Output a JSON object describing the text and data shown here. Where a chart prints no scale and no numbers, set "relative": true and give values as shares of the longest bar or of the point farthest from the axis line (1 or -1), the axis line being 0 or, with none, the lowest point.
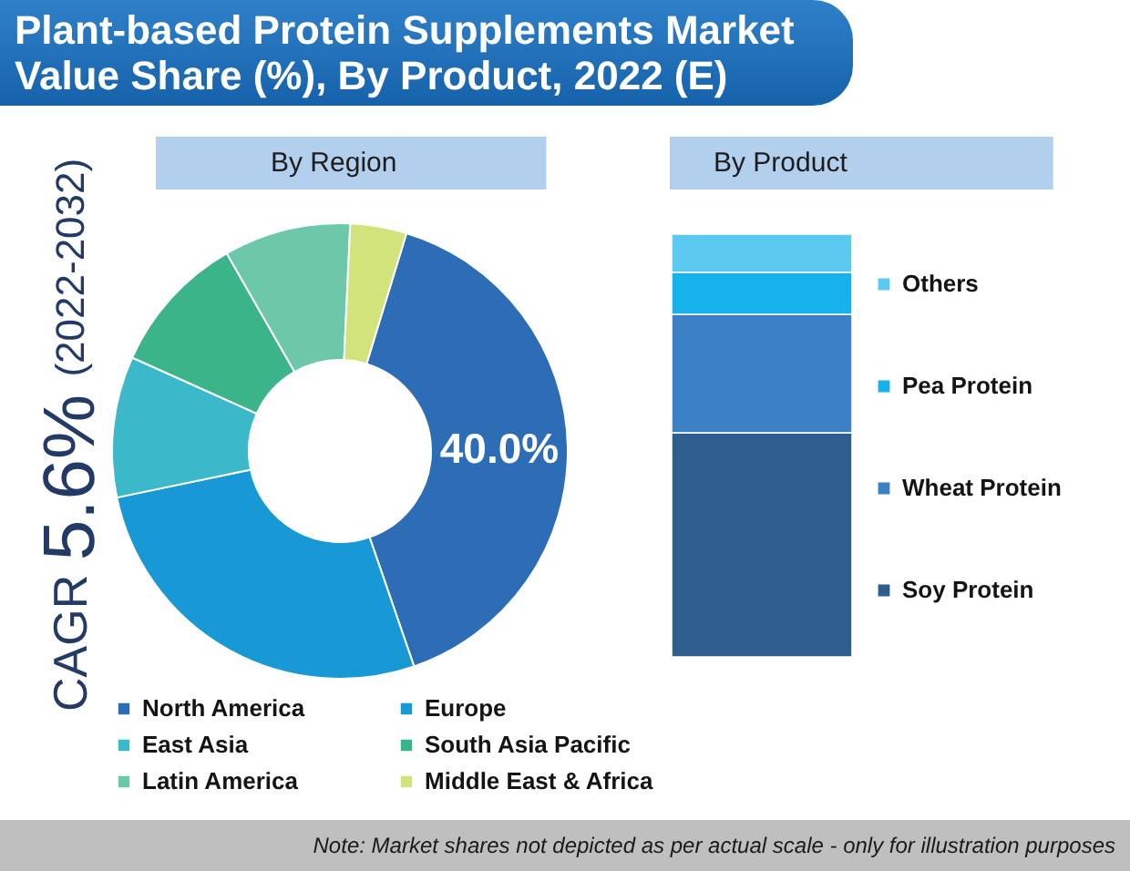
{
  "chart_data": [
    {
      "type": "donut",
      "title": "Plant-based Protein Supplements Market Value Share (%), By Product, 2022 (E)",
      "annotations": [
        "By Region",
        "CAGR 5.6% (2022-2032)",
        "Note: Market shares not depicted as per actual scale - only for illustration purposes"
      ],
      "categories": [
        "North America",
        "Europe",
        "East Asia",
        "South Asia Pacific",
        "Latin America",
        "Middle East & Africa"
      ],
      "values": [
        40.0,
        27,
        10,
        10,
        9,
        4
      ],
      "colors": [
        "#2c6db5",
        "#1899d6",
        "#3bb8ca",
        "#3cb48a",
        "#6dc8aa",
        "#d3e37c"
      ],
      "value_labels": [
        "40.0%",
        null,
        null,
        null,
        null,
        null
      ],
      "legend": "bottom"
    },
    {
      "type": "bar",
      "title": "By Product",
      "categories": [
        null
      ],
      "stacked": true,
      "relative": true,
      "series": [
        {
          "name": "Soy Protein",
          "color": "#2d5e8e",
          "values": [
            0.53
          ]
        },
        {
          "name": "Wheat Protein",
          "color": "#3b80c5",
          "values": [
            0.28
          ]
        },
        {
          "name": "Pea Protein",
          "color": "#17b1ec",
          "values": [
            0.1
          ]
        },
        {
          "name": "Others",
          "color": "#5cc9f0",
          "values": [
            0.09
          ]
        }
      ],
      "legend": "right"
    }
  ]
}
